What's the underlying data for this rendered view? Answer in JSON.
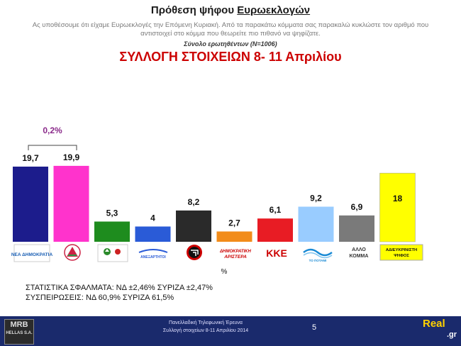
{
  "header": {
    "title_prefix": "Πρόθεση ψήφου",
    "title_underlined": "Ευρωεκλογών",
    "intro": "Ας υποθέσουμε ότι είχαμε Ευρωεκλογές την Επόμενη Κυριακή. Από τα παρακάτω κόμματα σας παρακαλώ κυκλώστε τον αριθμό που αντιστοιχεί στο κόμμα που θεωρείτε πιο πιθανό να ψηφίζατε.",
    "sample": "Σύνολο ερωτηθέντων (N=1006)",
    "subtitle": "ΣΥΛΛΟΓΗ ΣΤΟΙΧΕΙΩΝ 8- 11 Απριλίου"
  },
  "chart_data": {
    "type": "bar",
    "categories": [
      "ΝΕΑ ΔΗΜΟΚΡΑΤΙΑ",
      "ΣΥΡΙΖΑ",
      "ΠΑΣΟΚ",
      "ΑΝΕΞΑΡΤΗΤΟΙ ΕΛΛΗΝΕΣ",
      "ΧΡΥΣΗ ΑΥΓΗ",
      "ΔΗΜΟΚΡΑΤΙΚΗ ΑΡΙΣΤΕΡΑ",
      "ΚΚΕ",
      "ΤΟ ΠΟΤΑΜΙ",
      "ΑΛΛΟ ΚΟΜΜΑ",
      "ΑΔΙΕΥΚΡΙΝΙΣΤΗ ΨΗΦΟΣ"
    ],
    "values": [
      19.7,
      19.9,
      5.3,
      4,
      8.2,
      2.7,
      6.1,
      9.2,
      6.9,
      18
    ],
    "value_labels": [
      "19,7",
      "19,9",
      "5,3",
      "4",
      "8,2",
      "2,7",
      "6,1",
      "9,2",
      "6,9",
      "18"
    ],
    "colors": [
      "#1c1c8c",
      "#ff33cc",
      "#1e8c1e",
      "#2a5bd7",
      "#2a2a2a",
      "#f28c1a",
      "#e81c24",
      "#99ccff",
      "#7a7a7a",
      "#ffff00"
    ],
    "ylim": [
      0,
      21
    ],
    "unit_label": "%",
    "difference_label": "0,2%",
    "logo_texts": {
      "nd": "ΝΕΑ ΔΗΜΟΚΡΑΤΙΑ",
      "anel": "ΑΝΕΞΑΡΤΗΤΟΙ",
      "dimar_1": "ΔΗΜΟΚΡΑΤΙΚΗ",
      "dimar_2": "ΑΡΙΣΤΕΡΑ",
      "kke": "ΚΚΕ",
      "potami": "ΤΟ ΠΟΤΑΜΙ",
      "allo_1": "ΑΛΛΟ",
      "allo_2": "ΚΟΜΜΑ",
      "adie_1": "ΑΔΙΕΥΚΡΙΝΙΣΤΗ",
      "adie_2": "ΨΗΦΟΣ"
    }
  },
  "notes": {
    "errors": "ΣΤΑΤΙΣΤΙΚΑ ΣΦΑΛΜΑΤΑ: ΝΔ ±2,46% ΣΥΡΙΖΑ ±2,47%",
    "retention": "ΣΥΣΠΕΙΡΩΣΕΙΣ:  ΝΔ 60,9% ΣΥΡΙΖΑ 61,5%"
  },
  "footer": {
    "company": "MRB",
    "company_sub": "HELLAS S.A.",
    "line1": "Πανελλαδική Τηλεφωνική Έρευνα",
    "line2": "Συλλογή στοιχείων 8-11 Απριλίου 2014",
    "page": "5",
    "brand_main": "Real",
    "brand_sub": ".gr"
  }
}
